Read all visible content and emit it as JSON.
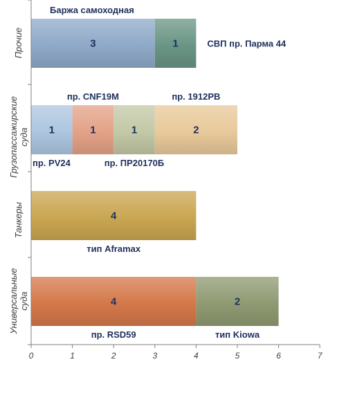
{
  "chart_data": {
    "type": "bar",
    "orientation": "horizontal",
    "stacked": true,
    "categories": [
      "Прочие",
      "Грузопассажирские суда",
      "Танкеры",
      "Универсальные суда"
    ],
    "segments": [
      [
        {
          "value": 3,
          "label": "3",
          "name": "Баржа самоходная",
          "color": "#8fa9c8"
        },
        {
          "value": 1,
          "label": "1",
          "name": "СВП пр. Парма 44",
          "color": "#6a9584"
        }
      ],
      [
        {
          "value": 1,
          "label": "1",
          "name": "пр. PV24",
          "color": "#adc6e0"
        },
        {
          "value": 1,
          "label": "1",
          "name": "пр. CNF19M",
          "color": "#e3a287"
        },
        {
          "value": 1,
          "label": "1",
          "name": "пр. ПР20170Б",
          "color": "#c3c8a6"
        },
        {
          "value": 2,
          "label": "2",
          "name": "пр. 1912РВ",
          "color": "#e8c99a"
        }
      ],
      [
        {
          "value": 4,
          "label": "4",
          "name": "тип Aframax",
          "color": "#c9a651"
        }
      ],
      [
        {
          "value": 4,
          "label": "4",
          "name": "пр. RSD59",
          "color": "#d4784a"
        },
        {
          "value": 2,
          "label": "2",
          "name": "тип Kiowa",
          "color": "#8f9a72"
        }
      ]
    ],
    "xlim": [
      0,
      7
    ],
    "xticks": [
      "0",
      "1",
      "2",
      "3",
      "4",
      "5",
      "6",
      "7"
    ],
    "grid": false,
    "legend": "none"
  }
}
